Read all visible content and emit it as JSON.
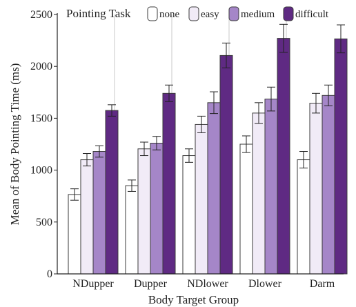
{
  "chart_data": {
    "type": "bar",
    "legend_title": "Pointing Task",
    "legend_placement": "top",
    "xlabel": "Body Target Group",
    "ylabel": "Mean of Body Pointing Time (ms)",
    "ylim": [
      0,
      2500
    ],
    "yticks": [
      0,
      500,
      1000,
      1500,
      2000,
      2500
    ],
    "categories": [
      "NDupper",
      "Dupper",
      "NDlower",
      "Dlower",
      "Darm"
    ],
    "series": [
      {
        "name": "none",
        "color": "#ffffff",
        "values": [
          765,
          850,
          1140,
          1250,
          1100
        ],
        "errors": [
          55,
          55,
          65,
          80,
          80
        ]
      },
      {
        "name": "easy",
        "color": "#f1ebf7",
        "values": [
          1100,
          1205,
          1440,
          1550,
          1645
        ],
        "errors": [
          60,
          65,
          80,
          100,
          95
        ]
      },
      {
        "name": "medium",
        "color": "#a586c8",
        "values": [
          1180,
          1260,
          1650,
          1685,
          1720
        ],
        "errors": [
          55,
          65,
          105,
          115,
          100
        ]
      },
      {
        "name": "difficult",
        "color": "#5f2a83",
        "values": [
          1575,
          1740,
          2105,
          2270,
          2265
        ],
        "errors": [
          55,
          80,
          120,
          135,
          135
        ]
      }
    ],
    "grid": false,
    "group_separators": true
  }
}
